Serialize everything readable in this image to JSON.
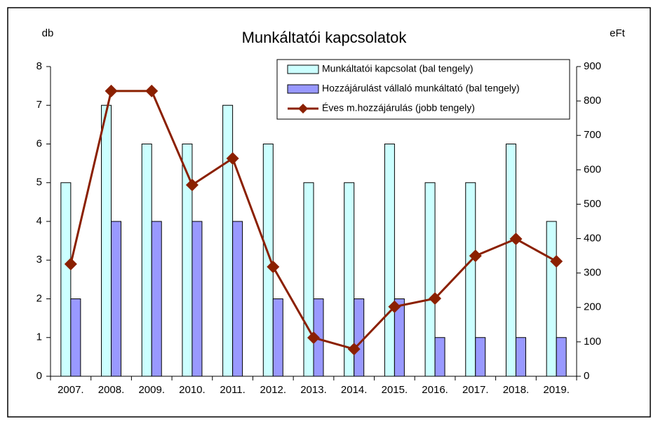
{
  "chart_data": {
    "type": "bar_line",
    "title": "Munkáltatói kapcsolatok",
    "y_label": "db",
    "y2_label": "eFt",
    "categories": [
      "2007.",
      "2008.",
      "2009.",
      "2010.",
      "2011.",
      "2012.",
      "2013.",
      "2014.",
      "2015.",
      "2016.",
      "2017.",
      "2018.",
      "2019."
    ],
    "series": [
      {
        "name": "Munkáltatói kapcsolat (bal tengely)",
        "color": "#ccffff",
        "type": "bar",
        "values": [
          5,
          7,
          6,
          6,
          7,
          6,
          5,
          5,
          6,
          5,
          5,
          6,
          4
        ]
      },
      {
        "name": "Hozzájárulást vállaló munkáltató (bal tengely)",
        "color": "#9999ff",
        "type": "bar",
        "values": [
          2,
          4,
          4,
          4,
          4,
          2,
          2,
          2,
          2,
          1,
          1,
          1,
          1
        ]
      },
      {
        "name": "Éves m.hozzájárulás (jobb tengely)",
        "color": "#8b2000",
        "type": "line",
        "axis": "y2",
        "values": [
          326,
          829,
          829,
          556,
          633,
          318,
          112,
          79,
          202,
          226,
          350,
          399,
          334
        ]
      }
    ],
    "ylim": [
      0,
      8
    ],
    "yticks": [
      0,
      1,
      2,
      3,
      4,
      5,
      6,
      7,
      8
    ],
    "y2lim": [
      0,
      900
    ],
    "y2ticks": [
      0,
      100,
      200,
      300,
      400,
      500,
      600,
      700,
      800,
      900
    ],
    "grid": false,
    "legend": "top-right"
  }
}
